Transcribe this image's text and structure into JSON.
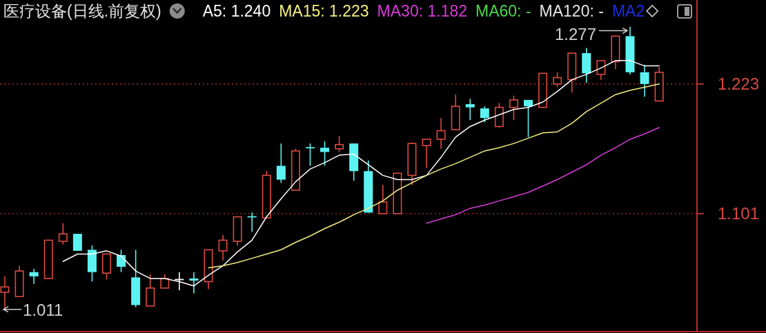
{
  "chart_data": {
    "type": "candlestick",
    "title": "医疗设备(日线.前复权)",
    "categories": [
      null,
      null,
      null,
      null,
      null,
      null,
      null,
      null,
      null,
      null,
      null,
      null,
      null,
      null,
      null,
      null,
      null,
      null,
      null,
      null,
      null,
      null,
      null,
      null,
      null,
      null,
      null,
      null,
      null,
      null,
      null,
      null,
      null,
      null,
      null,
      null,
      null,
      null,
      null,
      null,
      null,
      null,
      null,
      null,
      null,
      null
    ],
    "series": [
      {
        "ohlc": [
          [
            1.027,
            1.042,
            1.011,
            1.032
          ],
          [
            1.023,
            1.052,
            1.023,
            1.047
          ],
          [
            1.046,
            1.049,
            1.035,
            1.042
          ],
          [
            1.04,
            1.076,
            1.04,
            1.076
          ],
          [
            1.075,
            1.092,
            1.072,
            1.082
          ],
          [
            1.082,
            1.082,
            1.066,
            1.066
          ],
          [
            1.067,
            1.071,
            1.037,
            1.046
          ],
          [
            1.045,
            1.063,
            1.039,
            1.063
          ],
          [
            1.062,
            1.067,
            1.046,
            1.051
          ],
          [
            1.041,
            1.067,
            1.013,
            1.015
          ],
          [
            1.014,
            1.044,
            1.014,
            1.031
          ],
          [
            1.031,
            1.044,
            1.031,
            1.04
          ],
          [
            1.039,
            1.046,
            1.029,
            1.039
          ],
          [
            1.04,
            1.046,
            1.026,
            1.038
          ],
          [
            1.037,
            1.067,
            1.03,
            1.067
          ],
          [
            1.066,
            1.081,
            1.057,
            1.076
          ],
          [
            1.075,
            1.098,
            1.071,
            1.098
          ],
          [
            1.098,
            1.102,
            1.084,
            1.098
          ],
          [
            1.097,
            1.141,
            1.097,
            1.137
          ],
          [
            1.146,
            1.167,
            1.13,
            1.133
          ],
          [
            1.123,
            1.162,
            1.123,
            1.16
          ],
          [
            1.163,
            1.167,
            1.146,
            1.163
          ],
          [
            1.163,
            1.169,
            1.146,
            1.159
          ],
          [
            1.162,
            1.174,
            1.159,
            1.166
          ],
          [
            1.167,
            1.167,
            1.132,
            1.141
          ],
          [
            1.141,
            1.151,
            1.102,
            1.102
          ],
          [
            1.101,
            1.128,
            1.101,
            1.112
          ],
          [
            1.101,
            1.139,
            1.101,
            1.139
          ],
          [
            1.137,
            1.168,
            1.128,
            1.167
          ],
          [
            1.165,
            1.171,
            1.144,
            1.171
          ],
          [
            1.171,
            1.191,
            1.162,
            1.179
          ],
          [
            1.18,
            1.213,
            1.18,
            1.202
          ],
          [
            1.204,
            1.209,
            1.189,
            1.201
          ],
          [
            1.2,
            1.202,
            1.187,
            1.191
          ],
          [
            1.183,
            1.205,
            1.182,
            1.201
          ],
          [
            1.201,
            1.212,
            1.189,
            1.208
          ],
          [
            1.208,
            1.208,
            1.173,
            1.202
          ],
          [
            1.201,
            1.233,
            1.201,
            1.233
          ],
          [
            1.223,
            1.234,
            1.22,
            1.229
          ],
          [
            1.227,
            1.252,
            1.215,
            1.252
          ],
          [
            1.252,
            1.257,
            1.224,
            1.233
          ],
          [
            1.232,
            1.245,
            1.227,
            1.245
          ],
          [
            1.244,
            1.268,
            1.237,
            1.268
          ],
          [
            1.268,
            1.277,
            1.232,
            1.234
          ],
          [
            1.234,
            1.241,
            1.211,
            1.223
          ],
          [
            1.207,
            1.239,
            1.207,
            1.234
          ]
        ],
        "colors": [
          "#de4a40",
          "#de4a40",
          "#5cf2f2",
          "#de4a40",
          "#de4a40",
          "#5cf2f2",
          "#5cf2f2",
          "#de4a40",
          "#5cf2f2",
          "#5cf2f2",
          "#de4a40",
          "#de4a40",
          "#ffffff",
          "#5cf2f2",
          "#de4a40",
          "#de4a40",
          "#de4a40",
          "#5cf2f2",
          "#de4a40",
          "#5cf2f2",
          "#de4a40",
          "#5cf2f2",
          "#5cf2f2",
          "#de4a40",
          "#5cf2f2",
          "#5cf2f2",
          "#de4a40",
          "#de4a40",
          "#de4a40",
          "#de4a40",
          "#de4a40",
          "#de4a40",
          "#5cf2f2",
          "#5cf2f2",
          "#de4a40",
          "#de4a40",
          "#5cf2f2",
          "#de4a40",
          "#de4a40",
          "#de4a40",
          "#5cf2f2",
          "#de4a40",
          "#de4a40",
          "#5cf2f2",
          "#5cf2f2",
          "#de4a40"
        ]
      },
      {
        "type": "line",
        "name": "A5: 1.240",
        "color": "#ffffff",
        "values": [
          null,
          null,
          null,
          null,
          1.056,
          1.063,
          1.063,
          1.066,
          1.061,
          1.047,
          1.04,
          1.04,
          1.037,
          1.033,
          1.043,
          1.052,
          1.065,
          1.076,
          1.098,
          1.115,
          1.131,
          1.143,
          1.149,
          1.156,
          1.157,
          1.147,
          1.137,
          1.133,
          1.133,
          1.137,
          1.154,
          1.173,
          1.183,
          1.189,
          1.194,
          1.199,
          1.201,
          1.206,
          1.216,
          1.227,
          1.232,
          1.238,
          1.245,
          1.245,
          1.24,
          1.24
        ]
      },
      {
        "type": "line",
        "name": "MA15: 1.223",
        "color": "#f4ef80",
        "values": [
          null,
          null,
          null,
          null,
          null,
          null,
          null,
          null,
          null,
          null,
          null,
          null,
          null,
          null,
          1.05,
          1.052,
          1.055,
          1.059,
          1.063,
          1.067,
          1.074,
          1.08,
          1.087,
          1.093,
          1.1,
          1.106,
          1.113,
          1.123,
          1.13,
          1.137,
          1.143,
          1.148,
          1.154,
          1.16,
          1.163,
          1.167,
          1.172,
          1.177,
          1.178,
          1.186,
          1.197,
          1.205,
          1.213,
          1.217,
          1.22,
          1.223
        ]
      },
      {
        "type": "line",
        "name": "MA30: 1.182",
        "color": "#d83cd8",
        "values": [
          null,
          null,
          null,
          null,
          null,
          null,
          null,
          null,
          null,
          null,
          null,
          null,
          null,
          null,
          null,
          null,
          null,
          null,
          null,
          null,
          null,
          null,
          null,
          null,
          null,
          null,
          null,
          null,
          null,
          1.092,
          1.096,
          1.1,
          1.106,
          1.109,
          1.113,
          1.117,
          1.121,
          1.127,
          1.133,
          1.14,
          1.147,
          1.156,
          1.163,
          1.171,
          1.176,
          1.182
        ]
      },
      {
        "type": "line",
        "name": "MA60: -",
        "color": "#4cd84c",
        "values": [
          null,
          null,
          null,
          null,
          null,
          null,
          null,
          null,
          null,
          null,
          null,
          null,
          null,
          null,
          null,
          null,
          null,
          null,
          null,
          null,
          null,
          null,
          null,
          null,
          null,
          null,
          null,
          null,
          null,
          null,
          null,
          null,
          null,
          null,
          null,
          null,
          null,
          null,
          null,
          null,
          null,
          null,
          null,
          null,
          null,
          null
        ]
      },
      {
        "type": "line",
        "name": "MA120: -",
        "color": "#e6e6e6",
        "values": [
          null,
          null,
          null,
          null,
          null,
          null,
          null,
          null,
          null,
          null,
          null,
          null,
          null,
          null,
          null,
          null,
          null,
          null,
          null,
          null,
          null,
          null,
          null,
          null,
          null,
          null,
          null,
          null,
          null,
          null,
          null,
          null,
          null,
          null,
          null,
          null,
          null,
          null,
          null,
          null,
          null,
          null,
          null,
          null,
          null,
          null
        ]
      },
      {
        "type": "line",
        "name": "MA2",
        "color": "#1c2ee6",
        "values": [
          null,
          null,
          null,
          null,
          null,
          null,
          null,
          null,
          null,
          null,
          null,
          null,
          null,
          null,
          null,
          null,
          null,
          null,
          null,
          null,
          null,
          null,
          null,
          null,
          null,
          null,
          null,
          null,
          null,
          null,
          null,
          null,
          null,
          null,
          null,
          null,
          null,
          null,
          null,
          null,
          null,
          null,
          null,
          null,
          null,
          null
        ]
      }
    ],
    "ylim": [
      0.99,
      1.302
    ],
    "yticks": [
      1.101,
      1.223
    ],
    "grid": "y",
    "legend": "top",
    "tick_labels": "y",
    "annotations": [
      "1.277",
      "1.011"
    ]
  }
}
